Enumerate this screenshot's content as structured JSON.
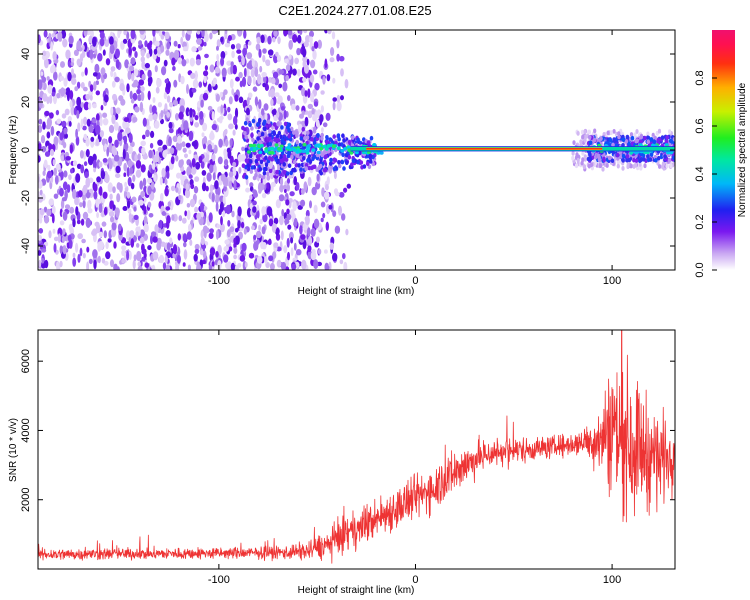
{
  "title": "C2E1.2024.277.01.08.E25",
  "colors": {
    "snr_line": "#ee3333",
    "background": "#ffffff",
    "frame": "#000000"
  },
  "chart_data": [
    {
      "type": "heatmap",
      "title": "C2E1.2024.277.01.08.E25",
      "xlabel": "Height of straight line (km)",
      "ylabel": "Frequency (Hz)",
      "xlim": [
        -192,
        132
      ],
      "ylim": [
        -50,
        50
      ],
      "xticks": [
        -100,
        0,
        100
      ],
      "yticks": [
        -40,
        -20,
        0,
        20,
        40
      ],
      "grid": false,
      "colorbar": {
        "label": "Normalized spectral amplitude",
        "range": [
          0,
          1
        ],
        "ticks": [
          "0.0",
          "0.2",
          "0.4",
          "0.6",
          "0.8"
        ],
        "colormap": "rainbow (white-purple-blue-cyan-green-yellow-red-magenta)"
      },
      "features": {
        "noise_region_x": [
          -192,
          -35
        ],
        "dense_noise_edge_x": -55,
        "signal_line_frequency": 0.5,
        "signal_line_x": [
          -85,
          132
        ],
        "strong_signal_x": [
          -25,
          95
        ]
      }
    },
    {
      "type": "line",
      "xlabel": "Height of straight line (km)",
      "ylabel": "SNR (10 * v/v)",
      "xlim": [
        -192,
        132
      ],
      "ylim": [
        0,
        6900
      ],
      "xticks": [
        -100,
        0,
        100
      ],
      "yticks": [
        2000,
        4000,
        6000
      ],
      "grid": false,
      "series": [
        {
          "x": [
            -192,
            -170,
            -150,
            -130,
            -110,
            -90,
            -70,
            -55,
            -45,
            -35,
            -25,
            -15,
            -5,
            5,
            15,
            25,
            35,
            45,
            55,
            65,
            75,
            85,
            95,
            100,
            105,
            110,
            115,
            120,
            125,
            132
          ],
          "y": [
            420,
            430,
            440,
            440,
            450,
            460,
            470,
            520,
            700,
            1000,
            1300,
            1600,
            1900,
            2200,
            2600,
            3000,
            3300,
            3400,
            3450,
            3500,
            3550,
            3650,
            3800,
            4100,
            3900,
            3600,
            3500,
            3300,
            3200,
            3400
          ],
          "amp": [
            180,
            180,
            180,
            180,
            180,
            180,
            200,
            300,
            450,
            550,
            600,
            650,
            700,
            700,
            750,
            650,
            500,
            450,
            400,
            350,
            350,
            400,
            1200,
            2200,
            2400,
            2300,
            1900,
            1700,
            1400,
            1100
          ]
        }
      ]
    }
  ]
}
